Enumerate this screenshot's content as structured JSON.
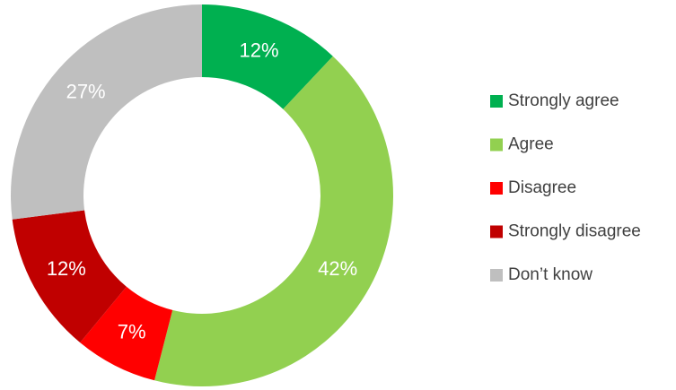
{
  "chart_data": {
    "type": "donut",
    "categories": [
      "Strongly agree",
      "Agree",
      "Disagree",
      "Strongly disagree",
      "Don’t know"
    ],
    "values": [
      12,
      42,
      7,
      12,
      27
    ],
    "value_labels": [
      "12%",
      "42%",
      "7%",
      "12%",
      "27%"
    ],
    "colors": [
      "#00b050",
      "#92d050",
      "#ff0000",
      "#c00000",
      "#bfbfbf"
    ],
    "legend": "right"
  }
}
